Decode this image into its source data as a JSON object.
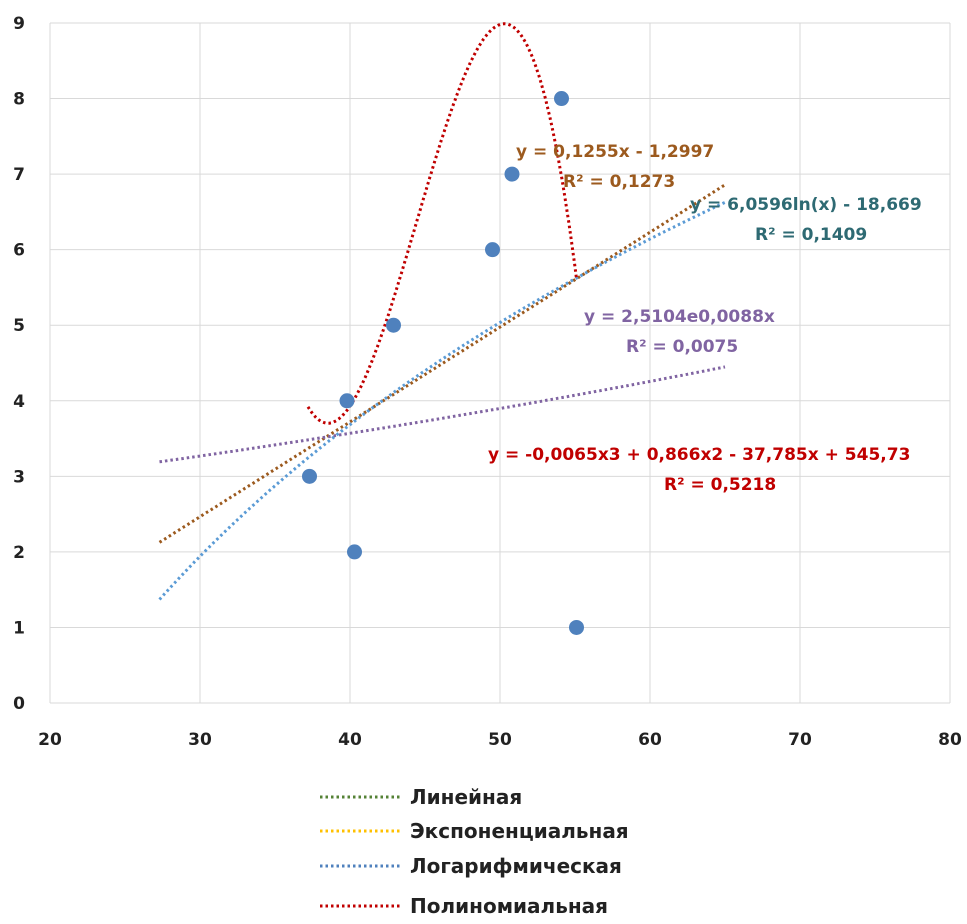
{
  "chart_data": {
    "type": "scatter",
    "xlim": [
      20,
      80
    ],
    "ylim": [
      0,
      9
    ],
    "x_ticks": [
      "20",
      "30",
      "40",
      "50",
      "60",
      "70",
      "80"
    ],
    "y_ticks": [
      "0",
      "1",
      "2",
      "3",
      "4",
      "5",
      "6",
      "7",
      "8",
      "9"
    ],
    "grid": true,
    "legend_position": "bottom",
    "points_color": "#4f81bd",
    "points": [
      {
        "x": 37.3,
        "y": 3
      },
      {
        "x": 39.8,
        "y": 4
      },
      {
        "x": 40.3,
        "y": 2
      },
      {
        "x": 42.9,
        "y": 5
      },
      {
        "x": 49.5,
        "y": 6
      },
      {
        "x": 50.8,
        "y": 7
      },
      {
        "x": 54.1,
        "y": 8
      },
      {
        "x": 55.1,
        "y": 1
      }
    ],
    "trendlines": [
      {
        "name": "Линейная",
        "legend_color": "#548235",
        "color": "#9c5a1e",
        "fn": "linear",
        "coef": [
          0.1255,
          -1.2997
        ],
        "x_range": [
          27.3,
          65
        ],
        "equation": "y = 0,1255x - 1,2997",
        "r2": "R² = 0,1273"
      },
      {
        "name": "Экспоненциальная",
        "legend_color": "#ffc000",
        "color": "#8064a2",
        "fn": "exp",
        "coef": [
          2.5104,
          0.0088
        ],
        "x_range": [
          27.3,
          65
        ],
        "equation": "y = 2,5104e0,0088x",
        "r2": "R² = 0,0075"
      },
      {
        "name": "Логарифмическая",
        "legend_color": "#4f81bd",
        "color": "#5b9bd5",
        "fn": "log",
        "coef": [
          6.0596,
          -18.669
        ],
        "x_range": [
          27.3,
          65
        ],
        "equation": "y = 6,0596ln(x) - 18,669",
        "r2": "R² = 0,1409"
      },
      {
        "name": "Полиномиальная",
        "legend_color": "#c00000",
        "color": "#c00000",
        "fn": "poly3",
        "coef": [
          -0.0065,
          0.866,
          -37.785,
          545.73
        ],
        "x_range": [
          37.2,
          55.1
        ],
        "equation": "y = -0,0065x3 + 0,866x2 - 37,785x + 545,73",
        "r2": "R² = 0,5218"
      }
    ],
    "annotation_colors": {
      "linear": "#9c5a1e",
      "exp": "#8064a2",
      "log": "#2e6a73",
      "poly3": "#c00000"
    }
  }
}
